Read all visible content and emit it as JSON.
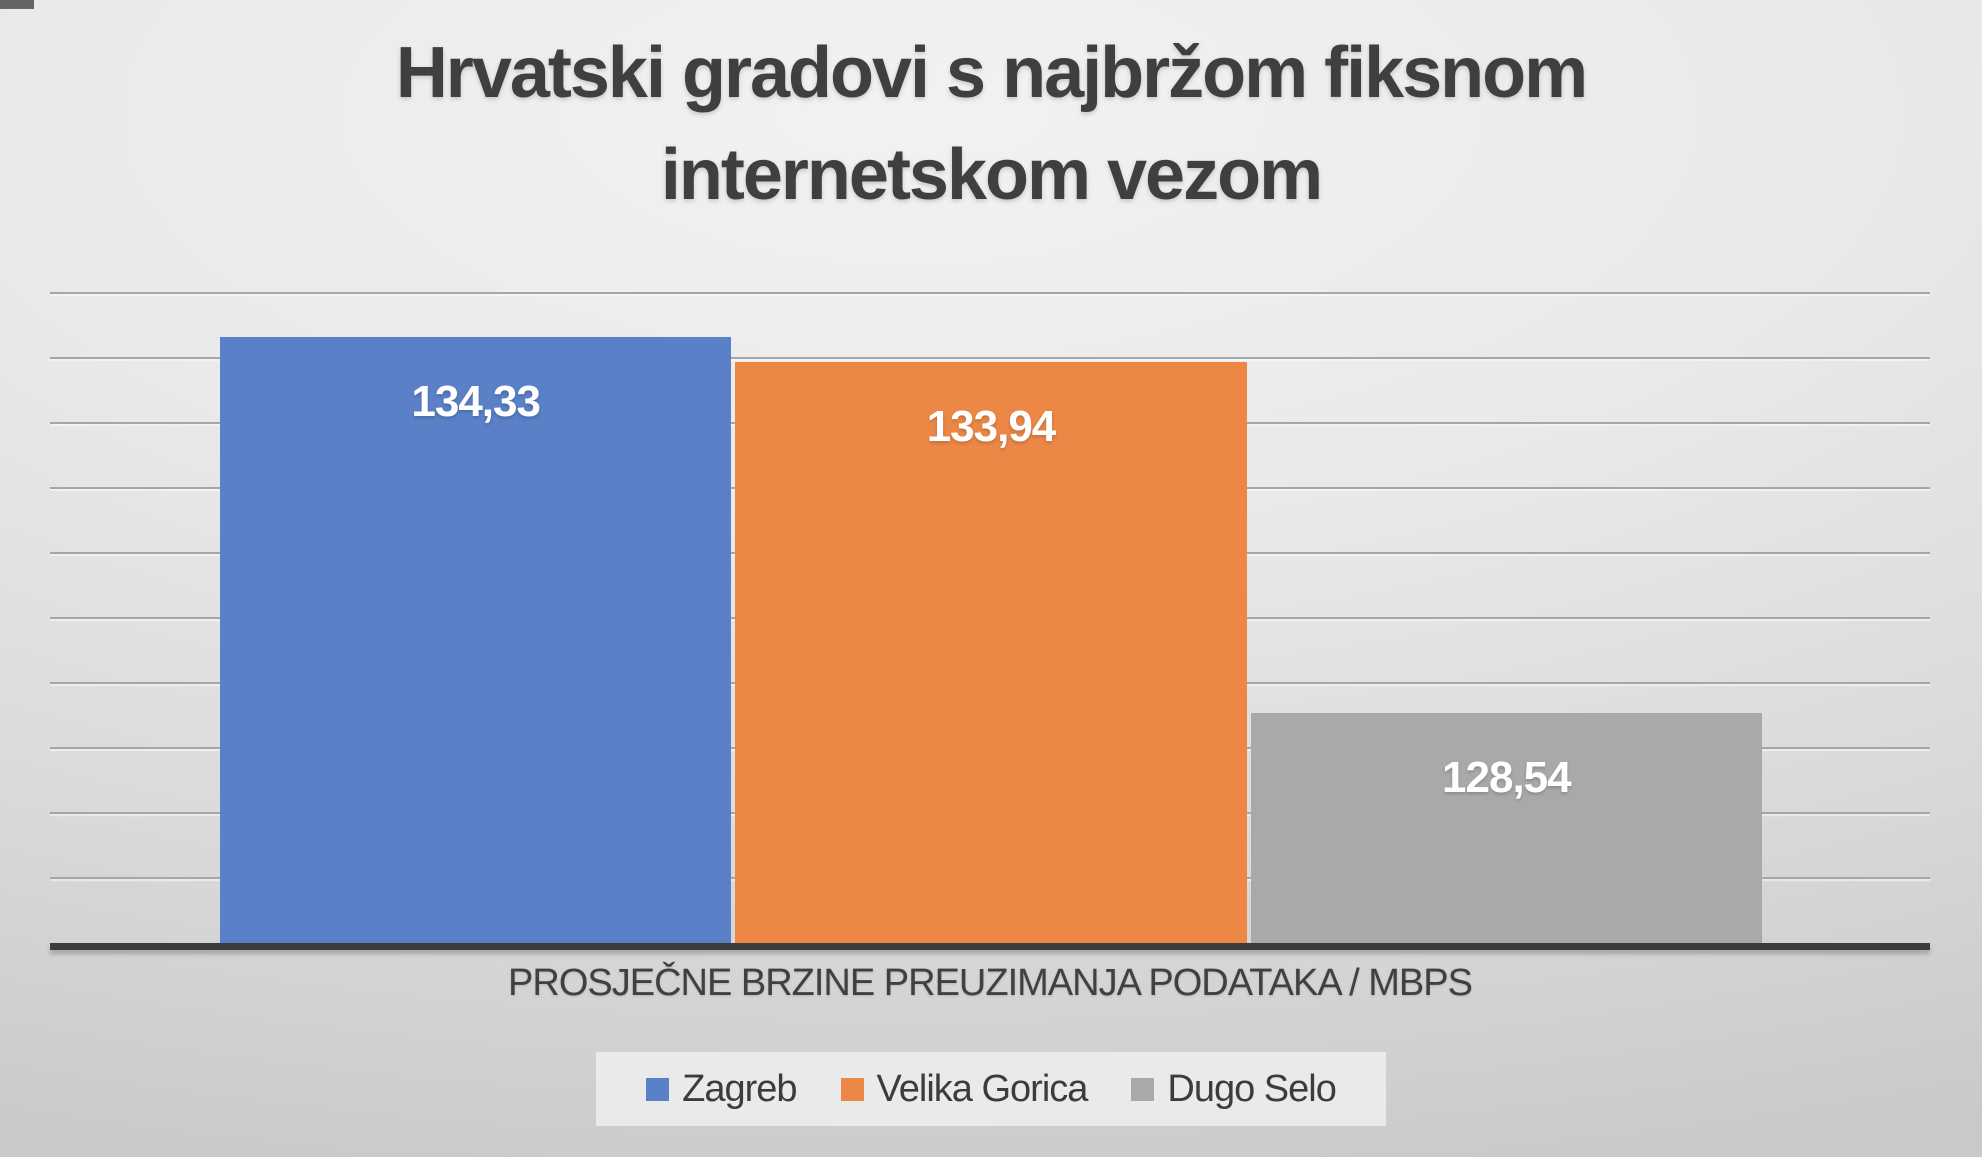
{
  "slide": {
    "title_lines": [
      "Hrvatski gradovi s najbržom fiksnom",
      "internetskom vezom"
    ]
  },
  "chart_data": {
    "type": "bar",
    "title": "Hrvatski gradovi s najbržom fiksnom internetskom vezom",
    "xlabel": "PROSJEČNE BRZINE PREUZIMANJA PODATAKA / MBPS",
    "ylabel": "",
    "categories": [
      "Zagreb",
      "Velika Gorica",
      "Dugo Selo"
    ],
    "series": [
      {
        "name": "Zagreb",
        "value": 134.33,
        "data_label": "134,33",
        "color": "#5A80C8"
      },
      {
        "name": "Velika Gorica",
        "value": 133.94,
        "data_label": "133,94",
        "color": "#EC8746"
      },
      {
        "name": "Dugo Selo",
        "value": 128.54,
        "data_label": "128,54",
        "color": "#A9A9A9"
      }
    ],
    "ylim": [
      125,
      136
    ],
    "gridline_step": 1,
    "grid": "horizontal",
    "y_axis_tick_labels_visible": false,
    "data_labels_position": "inside-end",
    "legend_position": "bottom"
  },
  "styles": {
    "title_color": "#3F3F3F",
    "axis_line_color": "#3C3C3C",
    "gridline_color": "#A6A6A6",
    "data_label_color": "#FFFFFF",
    "legend_background": "#EAEAEA",
    "text_color": "#3C3C3C",
    "background_top": "#F2F2F2",
    "background_bottom": "#C9C9C9"
  }
}
